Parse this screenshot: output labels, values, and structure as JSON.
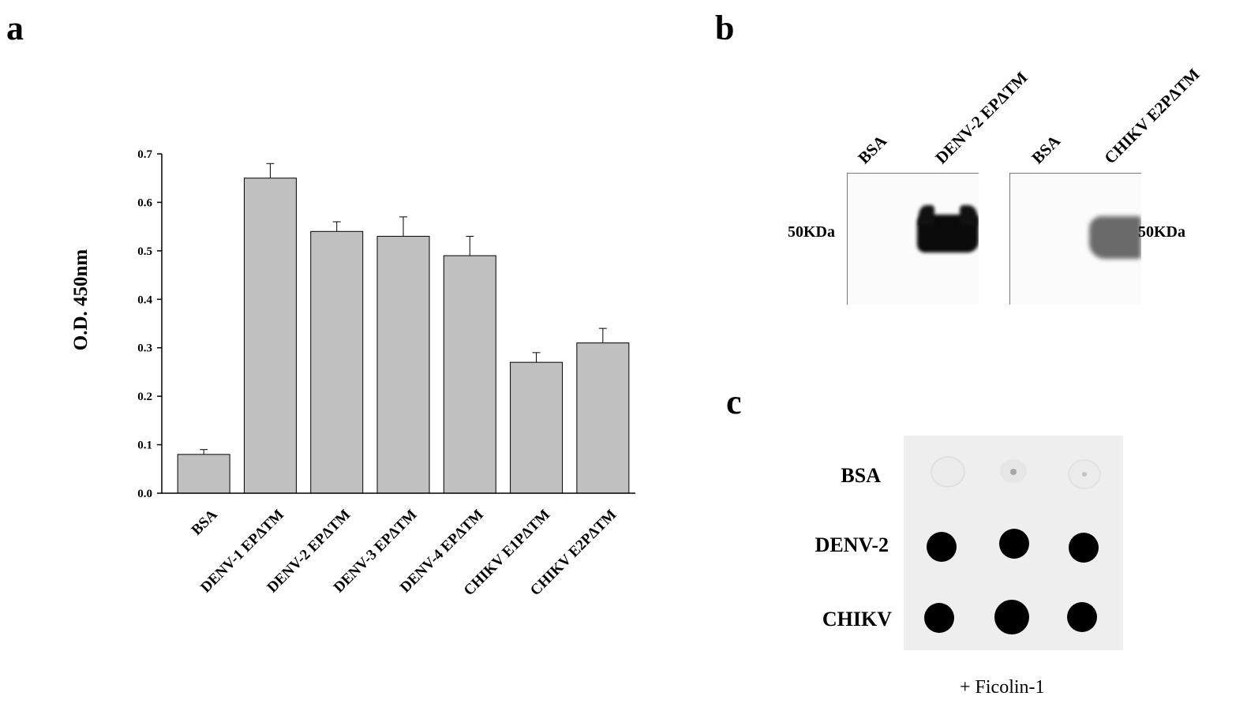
{
  "panels": {
    "a": "a",
    "b": "b",
    "c": "c"
  },
  "chart_data": {
    "type": "bar",
    "categories": [
      "BSA",
      "DENV-1 EPΔTM",
      "DENV-2 EPΔTM",
      "DENV-3 EPΔTM",
      "DENV-4 EPΔTM",
      "CHIKV  E1PΔTM",
      "CHIKV  E2PΔTM"
    ],
    "values": [
      0.08,
      0.65,
      0.54,
      0.53,
      0.49,
      0.27,
      0.31
    ],
    "errors": [
      0.01,
      0.03,
      0.02,
      0.04,
      0.04,
      0.02,
      0.03
    ],
    "ylabel": "O.D. 450nm",
    "ylim": [
      0,
      0.7
    ],
    "yticks": [
      "0.0",
      "0.1",
      "0.2",
      "0.3",
      "0.4",
      "0.5",
      "0.6",
      "0.7"
    ],
    "bar_color": "#c0c0c0",
    "grid": false
  },
  "blot": {
    "left": {
      "lanes": [
        "BSA",
        "DENV-2 EPΔTM"
      ],
      "marker": "50KDa"
    },
    "right": {
      "lanes": [
        "BSA",
        "CHIKV E2PΔTM"
      ],
      "marker": "50KDa"
    }
  },
  "dot_blot": {
    "rows": [
      "BSA",
      "DENV-2",
      "CHIKV"
    ],
    "caption": "+ Ficolin-1"
  }
}
